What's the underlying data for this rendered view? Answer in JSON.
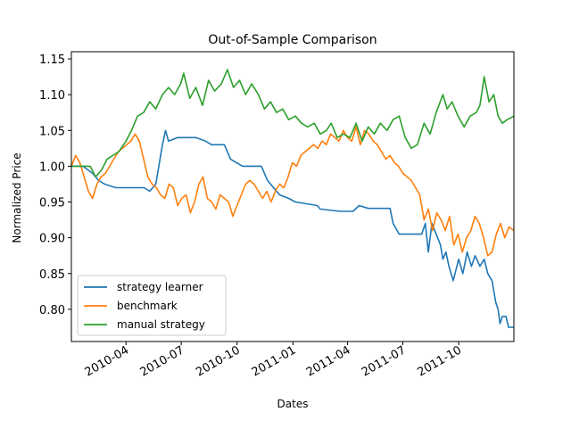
{
  "chart_data": {
    "type": "line",
    "title": "Out-of-Sample Comparison",
    "xlabel": "Dates",
    "ylabel": "Normalized Price",
    "xlim": [
      "2010-01-01",
      "2011-12-31"
    ],
    "ylim": [
      0.755,
      1.16
    ],
    "x_ticks": [
      {
        "date": "2010-04-01",
        "label": "2010-04"
      },
      {
        "date": "2010-07-01",
        "label": "2010-07"
      },
      {
        "date": "2010-10-01",
        "label": "2010-10"
      },
      {
        "date": "2011-01-01",
        "label": "2011-01"
      },
      {
        "date": "2011-04-01",
        "label": "2011-04"
      },
      {
        "date": "2011-07-01",
        "label": "2011-07"
      },
      {
        "date": "2011-10-01",
        "label": "2011-10"
      }
    ],
    "y_ticks": [
      0.8,
      0.85,
      0.9,
      0.95,
      1.0,
      1.05,
      1.1,
      1.15
    ],
    "y_tick_labels": [
      "0.80",
      "0.85",
      "0.90",
      "0.95",
      "1.00",
      "1.05",
      "1.10",
      "1.15"
    ],
    "grid": false,
    "legend_position": "lower-left",
    "series": [
      {
        "name": "strategy learner",
        "color": "#1f77b4",
        "points": [
          [
            "2010-01-01",
            1.0
          ],
          [
            "2010-01-20",
            1.0
          ],
          [
            "2010-02-05",
            0.99
          ],
          [
            "2010-02-15",
            0.98
          ],
          [
            "2010-02-25",
            0.975
          ],
          [
            "2010-03-15",
            0.97
          ],
          [
            "2010-04-01",
            0.97
          ],
          [
            "2010-05-01",
            0.97
          ],
          [
            "2010-05-10",
            0.965
          ],
          [
            "2010-05-20",
            0.975
          ],
          [
            "2010-05-25",
            1.0
          ],
          [
            "2010-05-31",
            1.03
          ],
          [
            "2010-06-05",
            1.05
          ],
          [
            "2010-06-10",
            1.035
          ],
          [
            "2010-06-25",
            1.04
          ],
          [
            "2010-07-25",
            1.04
          ],
          [
            "2010-08-10",
            1.035
          ],
          [
            "2010-08-20",
            1.03
          ],
          [
            "2010-09-10",
            1.03
          ],
          [
            "2010-09-20",
            1.01
          ],
          [
            "2010-10-10",
            1.0
          ],
          [
            "2010-11-10",
            1.0
          ],
          [
            "2010-11-20",
            0.98
          ],
          [
            "2010-12-05",
            0.965
          ],
          [
            "2010-12-10",
            0.96
          ],
          [
            "2010-12-25",
            0.955
          ],
          [
            "2011-01-05",
            0.95
          ],
          [
            "2011-02-10",
            0.945
          ],
          [
            "2011-02-15",
            0.94
          ],
          [
            "2011-03-20",
            0.937
          ],
          [
            "2011-04-10",
            0.937
          ],
          [
            "2011-04-20",
            0.945
          ],
          [
            "2011-05-05",
            0.941
          ],
          [
            "2011-06-10",
            0.941
          ],
          [
            "2011-06-15",
            0.92
          ],
          [
            "2011-06-25",
            0.905
          ],
          [
            "2011-08-01",
            0.905
          ],
          [
            "2011-08-07",
            0.92
          ],
          [
            "2011-08-12",
            0.88
          ],
          [
            "2011-08-18",
            0.92
          ],
          [
            "2011-08-25",
            0.905
          ],
          [
            "2011-09-01",
            0.89
          ],
          [
            "2011-09-05",
            0.87
          ],
          [
            "2011-09-10",
            0.88
          ],
          [
            "2011-09-15",
            0.86
          ],
          [
            "2011-09-22",
            0.84
          ],
          [
            "2011-10-01",
            0.87
          ],
          [
            "2011-10-08",
            0.85
          ],
          [
            "2011-10-15",
            0.88
          ],
          [
            "2011-10-22",
            0.86
          ],
          [
            "2011-10-28",
            0.875
          ],
          [
            "2011-11-05",
            0.86
          ],
          [
            "2011-11-12",
            0.87
          ],
          [
            "2011-11-18",
            0.85
          ],
          [
            "2011-11-25",
            0.84
          ],
          [
            "2011-12-01",
            0.81
          ],
          [
            "2011-12-05",
            0.8
          ],
          [
            "2011-12-08",
            0.78
          ],
          [
            "2011-12-12",
            0.79
          ],
          [
            "2011-12-18",
            0.79
          ],
          [
            "2011-12-22",
            0.775
          ],
          [
            "2011-12-31",
            0.775
          ]
        ]
      },
      {
        "name": "benchmark",
        "color": "#ff7f0e",
        "points": [
          [
            "2010-01-01",
            1.0
          ],
          [
            "2010-01-08",
            1.015
          ],
          [
            "2010-01-15",
            1.005
          ],
          [
            "2010-01-22",
            0.985
          ],
          [
            "2010-01-29",
            0.965
          ],
          [
            "2010-02-05",
            0.955
          ],
          [
            "2010-02-12",
            0.975
          ],
          [
            "2010-02-19",
            0.985
          ],
          [
            "2010-02-26",
            0.99
          ],
          [
            "2010-03-05",
            1.0
          ],
          [
            "2010-03-12",
            1.01
          ],
          [
            "2010-03-19",
            1.02
          ],
          [
            "2010-03-26",
            1.025
          ],
          [
            "2010-04-02",
            1.03
          ],
          [
            "2010-04-09",
            1.035
          ],
          [
            "2010-04-16",
            1.045
          ],
          [
            "2010-04-23",
            1.035
          ],
          [
            "2010-04-30",
            1.01
          ],
          [
            "2010-05-07",
            0.985
          ],
          [
            "2010-05-14",
            0.975
          ],
          [
            "2010-05-21",
            0.97
          ],
          [
            "2010-05-28",
            0.96
          ],
          [
            "2010-06-04",
            0.955
          ],
          [
            "2010-06-11",
            0.975
          ],
          [
            "2010-06-18",
            0.97
          ],
          [
            "2010-06-25",
            0.945
          ],
          [
            "2010-07-02",
            0.955
          ],
          [
            "2010-07-09",
            0.96
          ],
          [
            "2010-07-16",
            0.935
          ],
          [
            "2010-07-23",
            0.95
          ],
          [
            "2010-07-30",
            0.975
          ],
          [
            "2010-08-06",
            0.985
          ],
          [
            "2010-08-13",
            0.955
          ],
          [
            "2010-08-20",
            0.95
          ],
          [
            "2010-08-27",
            0.94
          ],
          [
            "2010-09-03",
            0.96
          ],
          [
            "2010-09-10",
            0.955
          ],
          [
            "2010-09-17",
            0.95
          ],
          [
            "2010-09-24",
            0.93
          ],
          [
            "2010-10-01",
            0.945
          ],
          [
            "2010-10-08",
            0.96
          ],
          [
            "2010-10-15",
            0.975
          ],
          [
            "2010-10-22",
            0.98
          ],
          [
            "2010-10-29",
            0.975
          ],
          [
            "2010-11-05",
            0.965
          ],
          [
            "2010-11-12",
            0.955
          ],
          [
            "2010-11-19",
            0.965
          ],
          [
            "2010-11-26",
            0.95
          ],
          [
            "2010-12-03",
            0.965
          ],
          [
            "2010-12-10",
            0.975
          ],
          [
            "2010-12-17",
            0.97
          ],
          [
            "2010-12-24",
            0.985
          ],
          [
            "2010-12-31",
            1.005
          ],
          [
            "2011-01-07",
            1.0
          ],
          [
            "2011-01-14",
            1.015
          ],
          [
            "2011-01-21",
            1.02
          ],
          [
            "2011-01-28",
            1.025
          ],
          [
            "2011-02-04",
            1.03
          ],
          [
            "2011-02-11",
            1.025
          ],
          [
            "2011-02-18",
            1.035
          ],
          [
            "2011-02-25",
            1.03
          ],
          [
            "2011-03-04",
            1.045
          ],
          [
            "2011-03-11",
            1.04
          ],
          [
            "2011-03-18",
            1.035
          ],
          [
            "2011-03-25",
            1.05
          ],
          [
            "2011-04-01",
            1.04
          ],
          [
            "2011-04-08",
            1.035
          ],
          [
            "2011-04-15",
            1.055
          ],
          [
            "2011-04-22",
            1.03
          ],
          [
            "2011-04-29",
            1.05
          ],
          [
            "2011-05-06",
            1.045
          ],
          [
            "2011-05-13",
            1.035
          ],
          [
            "2011-05-20",
            1.03
          ],
          [
            "2011-05-27",
            1.02
          ],
          [
            "2011-06-03",
            1.01
          ],
          [
            "2011-06-10",
            1.015
          ],
          [
            "2011-06-17",
            1.005
          ],
          [
            "2011-06-24",
            1.0
          ],
          [
            "2011-07-01",
            0.99
          ],
          [
            "2011-07-08",
            0.985
          ],
          [
            "2011-07-15",
            0.98
          ],
          [
            "2011-07-22",
            0.97
          ],
          [
            "2011-07-29",
            0.96
          ],
          [
            "2011-08-05",
            0.925
          ],
          [
            "2011-08-12",
            0.94
          ],
          [
            "2011-08-19",
            0.91
          ],
          [
            "2011-08-26",
            0.935
          ],
          [
            "2011-09-02",
            0.925
          ],
          [
            "2011-09-09",
            0.91
          ],
          [
            "2011-09-16",
            0.93
          ],
          [
            "2011-09-23",
            0.89
          ],
          [
            "2011-09-30",
            0.905
          ],
          [
            "2011-10-07",
            0.88
          ],
          [
            "2011-10-14",
            0.9
          ],
          [
            "2011-10-21",
            0.91
          ],
          [
            "2011-10-28",
            0.93
          ],
          [
            "2011-11-04",
            0.92
          ],
          [
            "2011-11-11",
            0.9
          ],
          [
            "2011-11-18",
            0.875
          ],
          [
            "2011-11-25",
            0.88
          ],
          [
            "2011-12-02",
            0.905
          ],
          [
            "2011-12-09",
            0.92
          ],
          [
            "2011-12-16",
            0.9
          ],
          [
            "2011-12-23",
            0.915
          ],
          [
            "2011-12-31",
            0.91
          ]
        ]
      },
      {
        "name": "manual strategy",
        "color": "#2ca02c",
        "points": [
          [
            "2010-01-01",
            1.0
          ],
          [
            "2010-01-15",
            1.0
          ],
          [
            "2010-02-01",
            1.0
          ],
          [
            "2010-02-10",
            0.985
          ],
          [
            "2010-02-20",
            0.995
          ],
          [
            "2010-03-01",
            1.01
          ],
          [
            "2010-03-10",
            1.015
          ],
          [
            "2010-03-20",
            1.02
          ],
          [
            "2010-04-01",
            1.035
          ],
          [
            "2010-04-10",
            1.05
          ],
          [
            "2010-04-20",
            1.07
          ],
          [
            "2010-04-30",
            1.075
          ],
          [
            "2010-05-10",
            1.09
          ],
          [
            "2010-05-20",
            1.08
          ],
          [
            "2010-05-31",
            1.1
          ],
          [
            "2010-06-10",
            1.11
          ],
          [
            "2010-06-20",
            1.1
          ],
          [
            "2010-06-30",
            1.115
          ],
          [
            "2010-07-05",
            1.13
          ],
          [
            "2010-07-15",
            1.095
          ],
          [
            "2010-07-25",
            1.11
          ],
          [
            "2010-08-05",
            1.085
          ],
          [
            "2010-08-15",
            1.12
          ],
          [
            "2010-08-25",
            1.105
          ],
          [
            "2010-09-05",
            1.115
          ],
          [
            "2010-09-15",
            1.135
          ],
          [
            "2010-09-25",
            1.11
          ],
          [
            "2010-10-05",
            1.12
          ],
          [
            "2010-10-15",
            1.1
          ],
          [
            "2010-10-25",
            1.115
          ],
          [
            "2010-11-05",
            1.1
          ],
          [
            "2010-11-15",
            1.08
          ],
          [
            "2010-11-25",
            1.09
          ],
          [
            "2010-12-05",
            1.075
          ],
          [
            "2010-12-15",
            1.08
          ],
          [
            "2010-12-25",
            1.065
          ],
          [
            "2011-01-05",
            1.07
          ],
          [
            "2011-01-15",
            1.06
          ],
          [
            "2011-01-25",
            1.055
          ],
          [
            "2011-02-05",
            1.06
          ],
          [
            "2011-02-15",
            1.045
          ],
          [
            "2011-02-25",
            1.05
          ],
          [
            "2011-03-05",
            1.06
          ],
          [
            "2011-03-15",
            1.04
          ],
          [
            "2011-03-25",
            1.045
          ],
          [
            "2011-04-05",
            1.04
          ],
          [
            "2011-04-15",
            1.06
          ],
          [
            "2011-04-25",
            1.035
          ],
          [
            "2011-05-05",
            1.055
          ],
          [
            "2011-05-15",
            1.045
          ],
          [
            "2011-05-25",
            1.06
          ],
          [
            "2011-06-05",
            1.05
          ],
          [
            "2011-06-15",
            1.065
          ],
          [
            "2011-06-25",
            1.07
          ],
          [
            "2011-07-05",
            1.04
          ],
          [
            "2011-07-15",
            1.025
          ],
          [
            "2011-07-25",
            1.03
          ],
          [
            "2011-08-05",
            1.06
          ],
          [
            "2011-08-15",
            1.045
          ],
          [
            "2011-08-25",
            1.075
          ],
          [
            "2011-09-05",
            1.1
          ],
          [
            "2011-09-12",
            1.08
          ],
          [
            "2011-09-20",
            1.09
          ],
          [
            "2011-09-30",
            1.07
          ],
          [
            "2011-10-10",
            1.055
          ],
          [
            "2011-10-20",
            1.07
          ],
          [
            "2011-10-30",
            1.075
          ],
          [
            "2011-11-05",
            1.085
          ],
          [
            "2011-11-12",
            1.125
          ],
          [
            "2011-11-20",
            1.09
          ],
          [
            "2011-11-28",
            1.1
          ],
          [
            "2011-12-05",
            1.07
          ],
          [
            "2011-12-12",
            1.06
          ],
          [
            "2011-12-20",
            1.065
          ],
          [
            "2011-12-31",
            1.07
          ]
        ]
      }
    ]
  }
}
